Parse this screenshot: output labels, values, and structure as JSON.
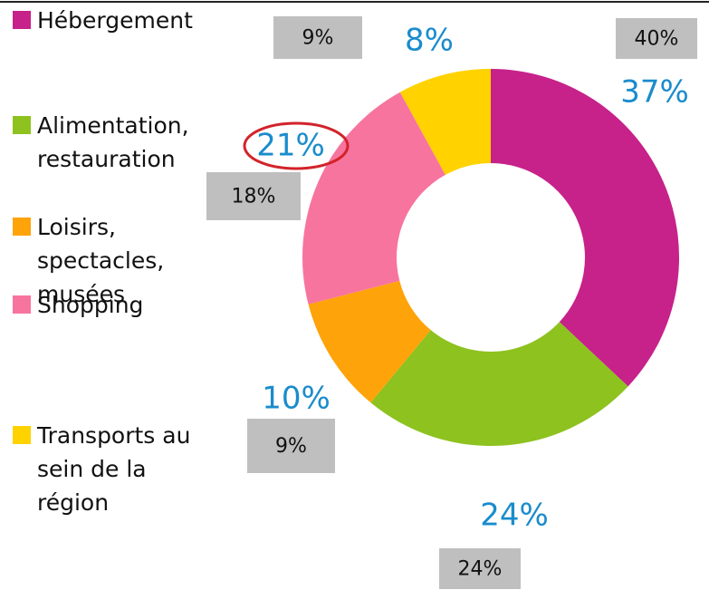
{
  "chart_data": {
    "type": "donut",
    "categories": [
      "Hébergement",
      "Alimentation, restauration",
      "Loisirs, spectacles, musées",
      "Shopping",
      "Transports au sein de la région"
    ],
    "values": [
      37,
      24,
      10,
      21,
      8
    ],
    "value_labels": [
      "37%",
      "24%",
      "10%",
      "21%",
      "8%"
    ],
    "comparison_values": [
      40,
      24,
      9,
      18,
      9
    ],
    "comparison_value_labels": [
      "40%",
      "24%",
      "9%",
      "18%",
      "9%"
    ],
    "colors": [
      "#c7218a",
      "#8dc21f",
      "#ffa30a",
      "#f7749f",
      "#ffd200"
    ]
  }
}
